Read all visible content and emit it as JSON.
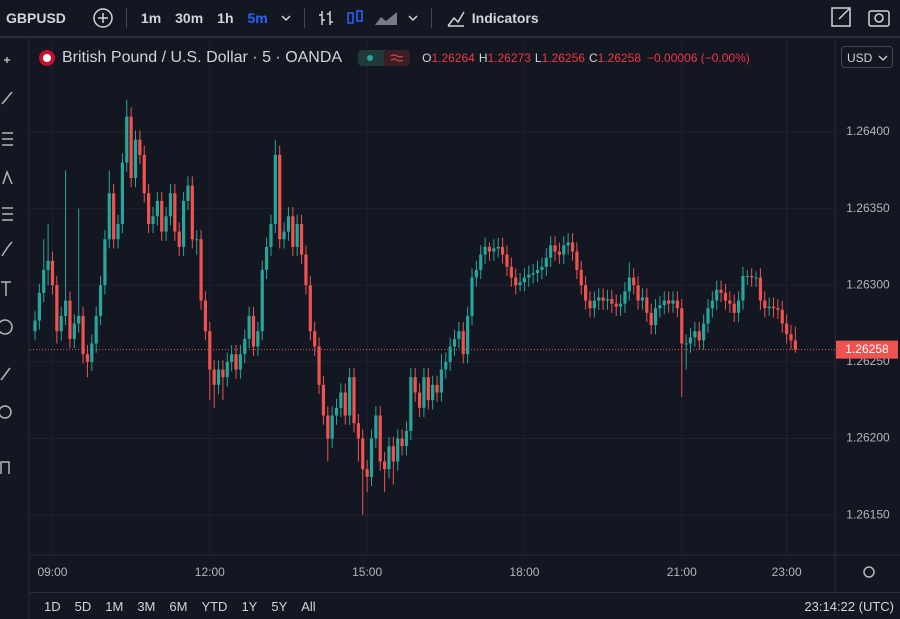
{
  "toolbar": {
    "symbol": "GBPUSD",
    "intervals": [
      "1m",
      "30m",
      "1h",
      "5m"
    ],
    "indicators": "Indicators"
  },
  "legend": {
    "title": "British Pound / U.S. Dollar · 5 · OANDA",
    "open_key": "O",
    "high_key": "H",
    "low_key": "L",
    "close_key": "C",
    "change": "−0.00006 (−0.00%)"
  },
  "currency": "USD",
  "range_buttons": [
    "1D",
    "5D",
    "1M",
    "3M",
    "6M",
    "YTD",
    "1Y",
    "5Y",
    "All"
  ],
  "clock": "23:14:22 (UTC)",
  "chart_data": {
    "type": "candlestick",
    "up_color": "#26a69a",
    "down_color": "#ef5350",
    "grid": true,
    "ylim": [
      1.26124,
      1.2646
    ],
    "yticks": [
      {
        "value": 1.2615,
        "label": "1.26150"
      },
      {
        "value": 1.262,
        "label": "1.26200"
      },
      {
        "value": 1.2625,
        "label": "1.26250"
      },
      {
        "value": 1.263,
        "label": "1.26300"
      },
      {
        "value": 1.2635,
        "label": "1.26350"
      },
      {
        "value": 1.264,
        "label": "1.26400"
      }
    ],
    "categories": [
      null,
      null,
      null,
      null,
      "09:00",
      null,
      null,
      null,
      null,
      null,
      null,
      null,
      null,
      null,
      null,
      null,
      null,
      null,
      null,
      null,
      null,
      null,
      null,
      null,
      null,
      null,
      null,
      null,
      null,
      null,
      null,
      null,
      null,
      null,
      null,
      null,
      null,
      null,
      null,
      null,
      "12:00",
      null,
      null,
      null,
      null,
      null,
      null,
      null,
      null,
      null,
      null,
      null,
      null,
      null,
      null,
      null,
      null,
      null,
      null,
      null,
      null,
      null,
      null,
      null,
      null,
      null,
      null,
      null,
      null,
      null,
      null,
      null,
      null,
      null,
      null,
      null,
      "15:00",
      null,
      null,
      null,
      null,
      null,
      null,
      null,
      null,
      null,
      null,
      null,
      null,
      null,
      null,
      null,
      null,
      null,
      null,
      null,
      null,
      null,
      null,
      null,
      null,
      null,
      null,
      null,
      null,
      null,
      null,
      null,
      null,
      null,
      null,
      null,
      "18:00",
      null,
      null,
      null,
      null,
      null,
      null,
      null,
      null,
      null,
      null,
      null,
      null,
      null,
      null,
      null,
      null,
      null,
      null,
      null,
      null,
      null,
      null,
      null,
      null,
      null,
      null,
      null,
      null,
      null,
      null,
      null,
      null,
      null,
      null,
      null,
      "21:00",
      null,
      null,
      null,
      null,
      null,
      null,
      null,
      null,
      null,
      null,
      null,
      null,
      null,
      null,
      null,
      null,
      null,
      null,
      null,
      null,
      null,
      null,
      null,
      "23:00",
      null,
      null
    ],
    "open": [
      1.2627,
      1.26277,
      1.26295,
      1.2631,
      1.26316,
      1.263,
      1.2627,
      1.2628,
      1.2629,
      1.26265,
      1.26275,
      1.2628,
      1.26255,
      1.2625,
      1.26262,
      1.2628,
      1.263,
      1.2633,
      1.2636,
      1.2633,
      1.2634,
      1.2638,
      1.2641,
      1.2637,
      1.26395,
      1.26385,
      1.2636,
      1.2634,
      1.26345,
      1.26355,
      1.26335,
      1.26345,
      1.2636,
      1.26335,
      1.26325,
      1.26355,
      1.26365,
      1.2633,
      1.2633,
      1.2629,
      1.2627,
      1.26245,
      1.26235,
      1.26245,
      1.2624,
      1.2625,
      1.26255,
      1.26245,
      1.26255,
      1.26265,
      1.2628,
      1.2626,
      1.2627,
      1.2631,
      1.26325,
      1.2634,
      1.26385,
      1.2633,
      1.26335,
      1.26345,
      1.26325,
      1.2634,
      1.2632,
      1.263,
      1.2627,
      1.2626,
      1.26235,
      1.26215,
      1.262,
      1.26215,
      1.2622,
      1.2623,
      1.26215,
      1.2624,
      1.2621,
      1.262,
      1.2618,
      1.26175,
      1.262,
      1.26215,
      1.26185,
      1.2618,
      1.26195,
      1.26185,
      1.262,
      1.26195,
      1.26205,
      1.2624,
      1.2623,
      1.2622,
      1.2624,
      1.26225,
      1.26235,
      1.2623,
      1.26245,
      1.2625,
      1.2626,
      1.26265,
      1.2627,
      1.26255,
      1.2628,
      1.26305,
      1.2631,
      1.2632,
      1.26325,
      1.26322,
      1.26324,
      1.26325,
      1.2632,
      1.26312,
      1.26305,
      1.263,
      1.26302,
      1.26305,
      1.26307,
      1.26308,
      1.2631,
      1.26312,
      1.26318,
      1.26326,
      1.26322,
      1.2632,
      1.26326,
      1.26328,
      1.26322,
      1.2631,
      1.263,
      1.2629,
      1.26285,
      1.2629,
      1.26292,
      1.2629,
      1.26291,
      1.26288,
      1.26286,
      1.26288,
      1.26296,
      1.26305,
      1.263,
      1.2629,
      1.26292,
      1.26282,
      1.26274,
      1.26285,
      1.26287,
      1.2629,
      1.26288,
      1.2629,
      1.26285,
      1.26262,
      1.26262,
      1.26266,
      1.2627,
      1.26264,
      1.26275,
      1.26285,
      1.2629,
      1.26297,
      1.26295,
      1.2629,
      1.26288,
      1.26282,
      1.2629,
      1.26306,
      1.26306,
      1.26305,
      1.26305,
      1.2629,
      1.26285,
      1.26286,
      1.26285,
      1.26284,
      1.26275,
      1.26268,
      1.26264
    ],
    "high": [
      1.26283,
      1.26301,
      1.2633,
      1.2634,
      1.26322,
      1.26306,
      1.26286,
      1.26375,
      1.26296,
      1.26281,
      1.2635,
      1.26286,
      1.26261,
      1.26268,
      1.26286,
      1.26306,
      1.26336,
      1.26375,
      1.26366,
      1.26346,
      1.26386,
      1.26421,
      1.26416,
      1.26401,
      1.26401,
      1.26391,
      1.26366,
      1.26351,
      1.26361,
      1.26361,
      1.26351,
      1.26366,
      1.26366,
      1.26341,
      1.26361,
      1.26371,
      1.26371,
      1.26336,
      1.26336,
      1.26296,
      1.26276,
      1.26251,
      1.26251,
      1.26251,
      1.26256,
      1.26261,
      1.26261,
      1.26261,
      1.26271,
      1.26286,
      1.26286,
      1.26276,
      1.26316,
      1.26331,
      1.26346,
      1.26395,
      1.26391,
      1.26341,
      1.26351,
      1.26351,
      1.26346,
      1.26346,
      1.26326,
      1.26306,
      1.26276,
      1.26266,
      1.26241,
      1.26221,
      1.26221,
      1.26226,
      1.26236,
      1.26236,
      1.26246,
      1.26246,
      1.26216,
      1.26206,
      1.26186,
      1.26206,
      1.26221,
      1.26221,
      1.26191,
      1.26201,
      1.26201,
      1.26206,
      1.26206,
      1.26211,
      1.26246,
      1.26246,
      1.26236,
      1.26246,
      1.26246,
      1.26241,
      1.26241,
      1.26255,
      1.26256,
      1.26266,
      1.26271,
      1.26276,
      1.26276,
      1.26286,
      1.26311,
      1.26316,
      1.26326,
      1.26331,
      1.26328,
      1.2633,
      1.26331,
      1.26331,
      1.26326,
      1.26318,
      1.26311,
      1.26308,
      1.26311,
      1.26313,
      1.26314,
      1.26316,
      1.26318,
      1.26324,
      1.26332,
      1.26332,
      1.26328,
      1.26332,
      1.26334,
      1.26334,
      1.26328,
      1.26316,
      1.26306,
      1.26296,
      1.26296,
      1.26298,
      1.26298,
      1.26297,
      1.26297,
      1.26294,
      1.26294,
      1.26302,
      1.26315,
      1.26311,
      1.26306,
      1.26298,
      1.26298,
      1.26288,
      1.26291,
      1.26293,
      1.26296,
      1.26296,
      1.26296,
      1.26296,
      1.26291,
      1.26268,
      1.26272,
      1.26276,
      1.26276,
      1.26281,
      1.26291,
      1.26296,
      1.26303,
      1.26303,
      1.26301,
      1.26296,
      1.26294,
      1.26296,
      1.26312,
      1.2631,
      1.26311,
      1.26309,
      1.26311,
      1.26296,
      1.26292,
      1.26292,
      1.26291,
      1.2629,
      1.26281,
      1.26274,
      1.26273
    ],
    "low": [
      1.26264,
      1.26271,
      1.26289,
      1.263,
      1.26294,
      1.26262,
      1.26264,
      1.26274,
      1.26259,
      1.26259,
      1.26269,
      1.26249,
      1.2624,
      1.26244,
      1.26256,
      1.26274,
      1.26294,
      1.26324,
      1.26324,
      1.26324,
      1.26334,
      1.26374,
      1.26364,
      1.26364,
      1.26379,
      1.26354,
      1.26334,
      1.26334,
      1.26339,
      1.26329,
      1.26329,
      1.26339,
      1.26329,
      1.26319,
      1.26319,
      1.26349,
      1.26324,
      1.2632,
      1.26284,
      1.26264,
      1.26225,
      1.2622,
      1.26229,
      1.26225,
      1.26234,
      1.26244,
      1.26239,
      1.26239,
      1.26249,
      1.26259,
      1.26254,
      1.26254,
      1.26264,
      1.26304,
      1.26319,
      1.26334,
      1.26324,
      1.26324,
      1.26329,
      1.26319,
      1.26319,
      1.26314,
      1.26294,
      1.26264,
      1.26254,
      1.26229,
      1.26209,
      1.26185,
      1.26194,
      1.26209,
      1.26214,
      1.26209,
      1.26209,
      1.26204,
      1.26185,
      1.2615,
      1.26165,
      1.26169,
      1.26194,
      1.26179,
      1.26165,
      1.26174,
      1.2617,
      1.26179,
      1.26189,
      1.26189,
      1.26199,
      1.26224,
      1.26214,
      1.26214,
      1.26219,
      1.26219,
      1.26224,
      1.26224,
      1.26239,
      1.26244,
      1.26254,
      1.26259,
      1.26249,
      1.26249,
      1.26274,
      1.26299,
      1.26304,
      1.26314,
      1.26316,
      1.26316,
      1.26318,
      1.26314,
      1.26306,
      1.26299,
      1.26294,
      1.26296,
      1.26296,
      1.26299,
      1.26301,
      1.26302,
      1.26304,
      1.26306,
      1.26312,
      1.26316,
      1.26314,
      1.26314,
      1.2632,
      1.26316,
      1.26304,
      1.26294,
      1.26284,
      1.26279,
      1.26279,
      1.26284,
      1.26284,
      1.26284,
      1.26282,
      1.2628,
      1.2628,
      1.26282,
      1.2629,
      1.26294,
      1.26284,
      1.26284,
      1.26276,
      1.26268,
      1.26268,
      1.26279,
      1.26281,
      1.26282,
      1.26282,
      1.26279,
      1.26227,
      1.26245,
      1.26256,
      1.2626,
      1.26258,
      1.26258,
      1.26269,
      1.26279,
      1.26284,
      1.26289,
      1.26284,
      1.26282,
      1.26276,
      1.26276,
      1.26284,
      1.263,
      1.26299,
      1.26299,
      1.26284,
      1.26279,
      1.2628,
      1.26279,
      1.26278,
      1.26269,
      1.26262,
      1.26258,
      1.26256
    ],
    "close": [
      1.26277,
      1.26295,
      1.2631,
      1.26316,
      1.263,
      1.2627,
      1.2628,
      1.2629,
      1.26265,
      1.26275,
      1.2628,
      1.26255,
      1.2625,
      1.26262,
      1.2628,
      1.263,
      1.2633,
      1.2636,
      1.2633,
      1.2634,
      1.2638,
      1.2641,
      1.2637,
      1.26395,
      1.26385,
      1.2636,
      1.2634,
      1.26345,
      1.26355,
      1.26335,
      1.26345,
      1.2636,
      1.26335,
      1.26325,
      1.26355,
      1.26365,
      1.2633,
      1.2633,
      1.2629,
      1.2627,
      1.26245,
      1.26235,
      1.26245,
      1.2624,
      1.2625,
      1.26255,
      1.26245,
      1.26255,
      1.26265,
      1.2628,
      1.2626,
      1.2627,
      1.2631,
      1.26325,
      1.2634,
      1.26385,
      1.2633,
      1.26335,
      1.26345,
      1.26325,
      1.2634,
      1.2632,
      1.263,
      1.2627,
      1.2626,
      1.26235,
      1.26215,
      1.262,
      1.26215,
      1.2622,
      1.2623,
      1.26215,
      1.2624,
      1.2621,
      1.262,
      1.2618,
      1.26175,
      1.262,
      1.26215,
      1.26185,
      1.2618,
      1.26195,
      1.26185,
      1.262,
      1.26195,
      1.26205,
      1.2624,
      1.2623,
      1.2622,
      1.2624,
      1.26225,
      1.26235,
      1.2623,
      1.26245,
      1.2625,
      1.2626,
      1.26265,
      1.2627,
      1.26255,
      1.2628,
      1.26305,
      1.2631,
      1.2632,
      1.26325,
      1.26322,
      1.26324,
      1.26325,
      1.2632,
      1.26312,
      1.26305,
      1.263,
      1.26302,
      1.26305,
      1.26307,
      1.26308,
      1.2631,
      1.26312,
      1.26318,
      1.26326,
      1.26322,
      1.2632,
      1.26326,
      1.26328,
      1.26322,
      1.2631,
      1.263,
      1.2629,
      1.26285,
      1.2629,
      1.26292,
      1.2629,
      1.26291,
      1.26288,
      1.26286,
      1.26288,
      1.26296,
      1.26305,
      1.263,
      1.2629,
      1.26292,
      1.26282,
      1.26274,
      1.26285,
      1.26287,
      1.2629,
      1.26288,
      1.2629,
      1.26285,
      1.26262,
      1.26262,
      1.26266,
      1.2627,
      1.26264,
      1.26275,
      1.26285,
      1.2629,
      1.26297,
      1.26295,
      1.2629,
      1.26288,
      1.26282,
      1.2629,
      1.26306,
      1.26306,
      1.26305,
      1.26305,
      1.2629,
      1.26285,
      1.26286,
      1.26285,
      1.26284,
      1.26275,
      1.26268,
      1.26264,
      1.26258
    ]
  }
}
